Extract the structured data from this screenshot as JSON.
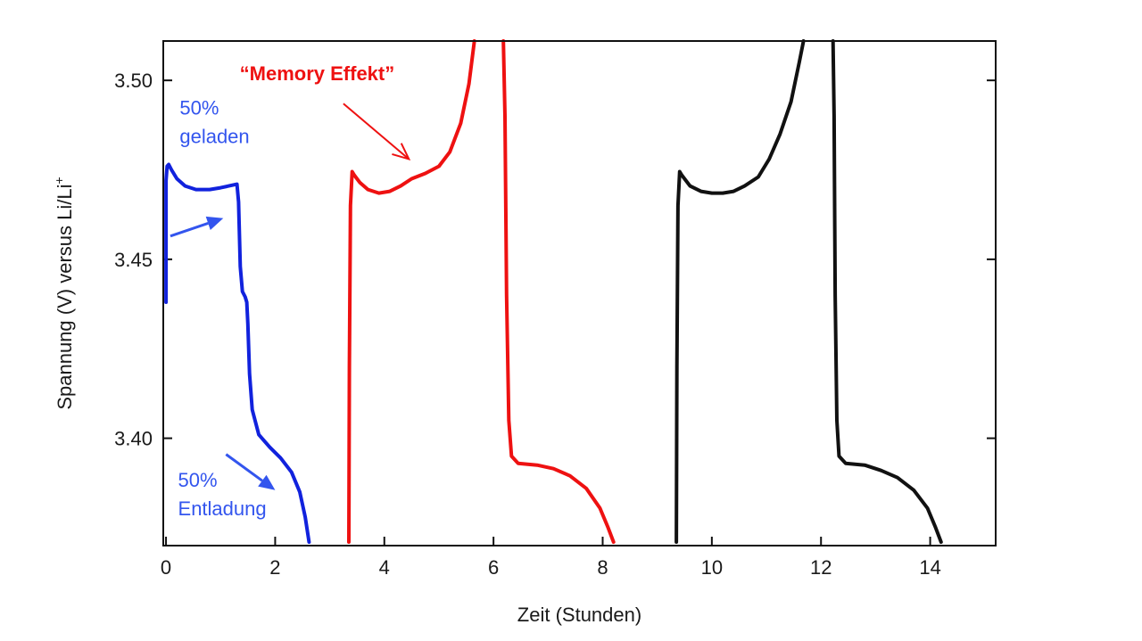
{
  "chart_data": {
    "type": "line",
    "title": "",
    "xlabel": "Zeit (Stunden)",
    "ylabel": "Spannung (V) versus Li/Li",
    "ylabel_superscript": "+",
    "xlim": [
      -0.05,
      15.2
    ],
    "ylim": [
      3.37,
      3.511
    ],
    "xticks": [
      0,
      2,
      4,
      6,
      8,
      10,
      12,
      14
    ],
    "xtick_labels": [
      "0",
      "2",
      "4",
      "6",
      "8",
      "10",
      "12",
      "14"
    ],
    "yticks": [
      3.4,
      3.45,
      3.5
    ],
    "ytick_labels": [
      "3.40",
      "3.45",
      "3.50"
    ],
    "grid": false,
    "series": [
      {
        "color": "#1122dd",
        "segments": [
          [
            [
              0.0,
              3.438
            ],
            [
              0.0,
              3.472
            ],
            [
              0.02,
              3.476
            ],
            [
              0.05,
              3.4765
            ],
            [
              0.1,
              3.475
            ],
            [
              0.2,
              3.4725
            ],
            [
              0.35,
              3.4705
            ],
            [
              0.55,
              3.4695
            ],
            [
              0.8,
              3.4695
            ],
            [
              1.0,
              3.47
            ],
            [
              1.15,
              3.4705
            ],
            [
              1.3,
              3.471
            ],
            [
              1.33,
              3.466
            ],
            [
              1.36,
              3.448
            ],
            [
              1.4,
              3.441
            ],
            [
              1.45,
              3.4395
            ],
            [
              1.48,
              3.438
            ],
            [
              1.5,
              3.432
            ],
            [
              1.53,
              3.418
            ],
            [
              1.58,
              3.408
            ],
            [
              1.7,
              3.401
            ],
            [
              1.9,
              3.3975
            ],
            [
              2.1,
              3.3945
            ],
            [
              2.3,
              3.3905
            ],
            [
              2.45,
              3.385
            ],
            [
              2.55,
              3.378
            ],
            [
              2.62,
              3.371
            ]
          ]
        ]
      },
      {
        "color": "#ee1111",
        "segments": [
          [
            [
              3.35,
              3.371
            ],
            [
              3.36,
              3.42
            ],
            [
              3.38,
              3.465
            ],
            [
              3.41,
              3.4745
            ],
            [
              3.45,
              3.4735
            ],
            [
              3.55,
              3.4715
            ],
            [
              3.7,
              3.4695
            ],
            [
              3.9,
              3.4685
            ],
            [
              4.1,
              3.469
            ],
            [
              4.3,
              3.4705
            ],
            [
              4.5,
              3.4725
            ],
            [
              4.75,
              3.474
            ],
            [
              5.0,
              3.476
            ],
            [
              5.2,
              3.48
            ],
            [
              5.4,
              3.488
            ],
            [
              5.55,
              3.499
            ],
            [
              5.65,
              3.511
            ]
          ],
          [
            [
              6.18,
              3.511
            ],
            [
              6.21,
              3.49
            ],
            [
              6.24,
              3.44
            ],
            [
              6.28,
              3.405
            ],
            [
              6.33,
              3.395
            ],
            [
              6.45,
              3.393
            ],
            [
              6.8,
              3.3925
            ],
            [
              7.1,
              3.3915
            ],
            [
              7.4,
              3.3895
            ],
            [
              7.7,
              3.386
            ],
            [
              7.95,
              3.3805
            ],
            [
              8.1,
              3.375
            ],
            [
              8.2,
              3.371
            ]
          ]
        ]
      },
      {
        "color": "#111111",
        "segments": [
          [
            [
              9.35,
              3.371
            ],
            [
              9.36,
              3.42
            ],
            [
              9.38,
              3.465
            ],
            [
              9.41,
              3.4745
            ],
            [
              9.45,
              3.4735
            ],
            [
              9.6,
              3.4705
            ],
            [
              9.8,
              3.469
            ],
            [
              10.0,
              3.4685
            ],
            [
              10.2,
              3.4685
            ],
            [
              10.4,
              3.469
            ],
            [
              10.6,
              3.4705
            ],
            [
              10.85,
              3.473
            ],
            [
              11.05,
              3.478
            ],
            [
              11.25,
              3.485
            ],
            [
              11.45,
              3.494
            ],
            [
              11.6,
              3.505
            ],
            [
              11.68,
              3.511
            ]
          ],
          [
            [
              12.22,
              3.511
            ],
            [
              12.24,
              3.49
            ],
            [
              12.26,
              3.44
            ],
            [
              12.29,
              3.405
            ],
            [
              12.33,
              3.395
            ],
            [
              12.45,
              3.393
            ],
            [
              12.8,
              3.3925
            ],
            [
              13.1,
              3.391
            ],
            [
              13.4,
              3.389
            ],
            [
              13.7,
              3.3855
            ],
            [
              13.95,
              3.3805
            ],
            [
              14.1,
              3.375
            ],
            [
              14.2,
              3.371
            ]
          ]
        ]
      }
    ],
    "annotations": [
      {
        "lines": [
          "50%",
          "geladen"
        ],
        "color": "#3355ee",
        "x": 0.25,
        "y": 3.4905,
        "arrow": [
          [
            0.08,
            3.4565
          ],
          [
            1.05,
            3.4615
          ]
        ]
      },
      {
        "lines": [
          "50%",
          "Entladung"
        ],
        "color": "#3355ee",
        "x": 0.22,
        "y": 3.3865,
        "arrow": [
          [
            1.1,
            3.3955
          ],
          [
            2.0,
            3.3855
          ]
        ]
      },
      {
        "lines": [
          "“Memory Effekt”"
        ],
        "color": "#ee1111",
        "bold": true,
        "x": 1.35,
        "y": 3.5,
        "arrow": [
          [
            3.25,
            3.4935
          ],
          [
            4.45,
            3.478
          ]
        ],
        "arrow_style": "open"
      }
    ]
  }
}
